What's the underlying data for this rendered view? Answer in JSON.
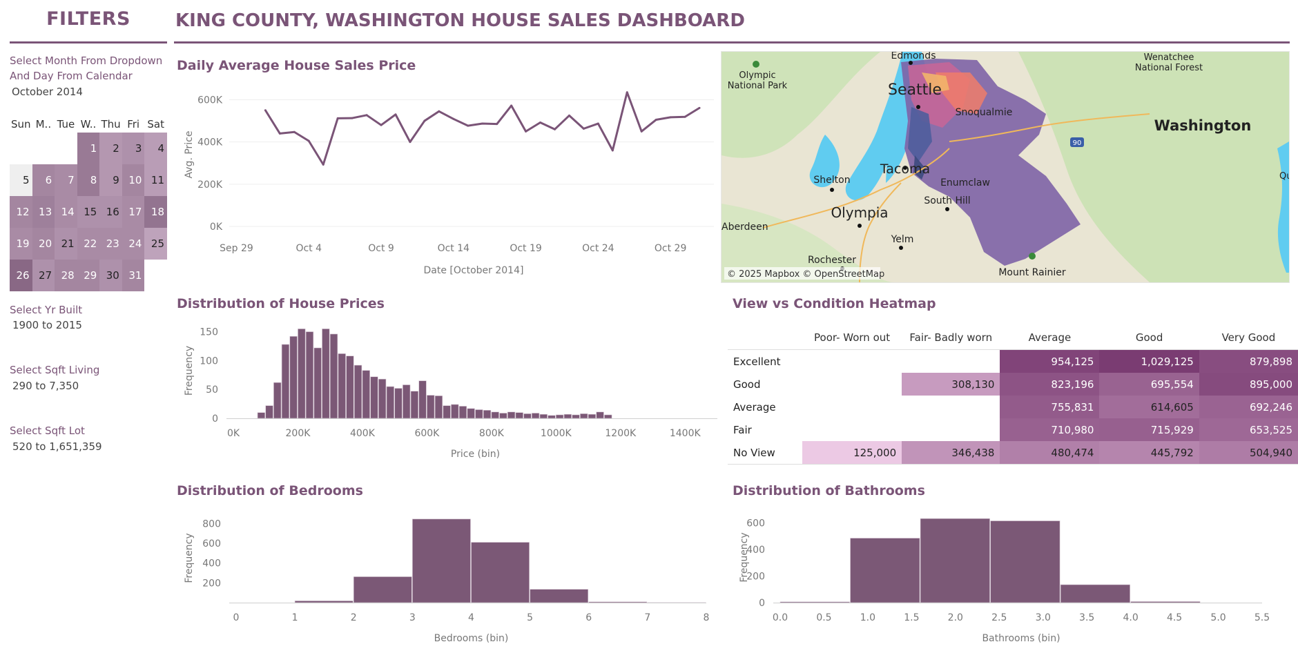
{
  "title": "KING COUNTY, WASHINGTON HOUSE SALES DASHBOARD",
  "filters": {
    "heading": "FILTERS",
    "month_label": "Select Month From Dropdown And Day From Calendar",
    "month_value": "October 2014",
    "calendar": {
      "weekdays": [
        "Sun",
        "M..",
        "Tue",
        "W..",
        "Thu",
        "Fri",
        "Sat"
      ],
      "leading_blanks": 3,
      "days": [
        "1",
        "2",
        "3",
        "4",
        "5",
        "6",
        "7",
        "8",
        "9",
        "10",
        "11",
        "12",
        "13",
        "14",
        "15",
        "16",
        "17",
        "18",
        "19",
        "20",
        "21",
        "22",
        "23",
        "24",
        "25",
        "26",
        "27",
        "28",
        "29",
        "30",
        "31"
      ],
      "shades": [
        0.6,
        0.35,
        0.4,
        0.3,
        0.0,
        0.5,
        0.45,
        0.6,
        0.35,
        0.5,
        0.3,
        0.5,
        0.55,
        0.45,
        0.4,
        0.4,
        0.45,
        0.65,
        0.45,
        0.5,
        0.4,
        0.45,
        0.45,
        0.45,
        0.25,
        0.75,
        0.4,
        0.5,
        0.5,
        0.4,
        0.5
      ]
    },
    "yr_built_label": "Select Yr Built",
    "yr_built_value": "1900 to 2015",
    "sqft_living_label": "Select Sqft Living",
    "sqft_living_value": "290 to 7,350",
    "sqft_lot_label": "Select Sqft Lot",
    "sqft_lot_value": "520 to 1,651,359"
  },
  "colors": {
    "accent": "#7a5477",
    "bar": "#7b5876",
    "heat_low": "#ecc9e4",
    "heat_high": "#7a3c72"
  },
  "chart_data": [
    {
      "id": "daily",
      "type": "line",
      "title": "Daily Average House Sales Price",
      "xlabel": "Date [October 2014]",
      "ylabel": "Avg. Price",
      "x": [
        1,
        2,
        3,
        4,
        5,
        6,
        7,
        8,
        9,
        10,
        11,
        12,
        13,
        14,
        15,
        16,
        17,
        18,
        19,
        20,
        21,
        22,
        23,
        24,
        25,
        26,
        27,
        28,
        29,
        30,
        31
      ],
      "values": [
        550000,
        440000,
        447000,
        405000,
        293000,
        512000,
        513000,
        527000,
        480000,
        530000,
        400000,
        500000,
        545000,
        509000,
        477000,
        487000,
        485000,
        572000,
        450000,
        492000,
        460000,
        525000,
        463000,
        487000,
        360000,
        635000,
        450000,
        505000,
        517000,
        519000,
        561000
      ],
      "ylim": [
        0,
        680000
      ],
      "yticks": [
        0,
        200000,
        400000,
        600000
      ],
      "ytick_labels": [
        "0K",
        "200K",
        "400K",
        "600K"
      ],
      "xtick_days": [
        -1,
        4,
        9,
        14,
        19,
        24,
        29
      ],
      "xtick_labels": [
        "Sep 29",
        "Oct 4",
        "Oct 9",
        "Oct 14",
        "Oct 19",
        "Oct 24",
        "Oct 29"
      ],
      "grid": true
    },
    {
      "id": "price_hist",
      "type": "bar",
      "title": "Distribution of House Prices",
      "xlabel": "Price (bin)",
      "ylabel": "Frequency",
      "bin_start": 75000,
      "bin_width": 25000,
      "values": [
        10,
        22,
        62,
        128,
        142,
        155,
        150,
        122,
        155,
        146,
        112,
        108,
        92,
        83,
        72,
        68,
        55,
        52,
        58,
        47,
        65,
        40,
        39,
        22,
        24,
        21,
        17,
        15,
        14,
        11,
        9,
        11,
        10,
        8,
        9,
        7,
        5,
        6,
        7,
        6,
        8,
        7,
        11,
        6
      ],
      "xlim": [
        0,
        1500000
      ],
      "xticks": [
        0,
        200000,
        400000,
        600000,
        800000,
        1000000,
        1200000,
        1400000
      ],
      "xtick_labels": [
        "0K",
        "200K",
        "400K",
        "600K",
        "800K",
        "1000K",
        "1200K",
        "1400K"
      ],
      "ylim": [
        0,
        165
      ],
      "yticks": [
        0,
        50,
        100,
        150
      ],
      "ytick_labels": [
        "0",
        "50",
        "100",
        "150"
      ]
    },
    {
      "id": "heatmap",
      "type": "heatmap",
      "title": "View vs Condition Heatmap",
      "columns": [
        "Poor- Worn out",
        "Fair- Badly worn",
        "Average",
        "Good",
        "Very Good"
      ],
      "rows": [
        {
          "label": "Excellent",
          "cells": [
            "",
            "",
            "954,125",
            "1,029,125",
            "879,898"
          ],
          "values": [
            null,
            null,
            954125,
            1029125,
            879898
          ]
        },
        {
          "label": "Good",
          "cells": [
            "",
            "308,130",
            "823,196",
            "695,554",
            "895,000"
          ],
          "values": [
            null,
            308130,
            823196,
            695554,
            895000
          ]
        },
        {
          "label": "Average",
          "cells": [
            "",
            "",
            "755,831",
            "614,605",
            "692,246"
          ],
          "values": [
            null,
            null,
            755831,
            614605,
            692246
          ]
        },
        {
          "label": "Fair",
          "cells": [
            "",
            "",
            "710,980",
            "715,929",
            "653,525"
          ],
          "values": [
            null,
            null,
            710980,
            715929,
            653525
          ]
        },
        {
          "label": "No View",
          "cells": [
            "125,000",
            "346,438",
            "480,474",
            "445,792",
            "504,940"
          ],
          "values": [
            125000,
            346438,
            480474,
            445792,
            504940
          ]
        }
      ]
    },
    {
      "id": "bedrooms",
      "type": "bar",
      "title": "Distribution of Bedrooms",
      "xlabel": "Bedrooms (bin)",
      "ylabel": "Frequency",
      "bin_start": 0,
      "bin_width": 1,
      "values": [
        0,
        18,
        262,
        845,
        610,
        135,
        8,
        1
      ],
      "xlim": [
        0,
        8
      ],
      "xticks": [
        0,
        1,
        2,
        3,
        4,
        5,
        6,
        7,
        8
      ],
      "xtick_labels": [
        "0",
        "1",
        "2",
        "3",
        "4",
        "5",
        "6",
        "7",
        "8"
      ],
      "ylim": [
        0,
        900
      ],
      "yticks": [
        200,
        400,
        600,
        800
      ],
      "ytick_labels": [
        "200",
        "400",
        "600",
        "800"
      ]
    },
    {
      "id": "bathrooms",
      "type": "bar",
      "title": "Distribution of Bathrooms",
      "xlabel": "Bathrooms (bin)",
      "ylabel": "Frequency",
      "bin_start": 0,
      "bin_width": 0.8,
      "values": [
        6,
        485,
        632,
        615,
        135,
        8,
        0
      ],
      "xlim": [
        0,
        5.5
      ],
      "xticks": [
        0,
        0.5,
        1,
        1.5,
        2,
        2.5,
        3,
        3.5,
        4,
        4.5,
        5,
        5.5
      ],
      "xtick_labels": [
        "0.0",
        "0.5",
        "1.0",
        "1.5",
        "2.0",
        "2.5",
        "3.0",
        "3.5",
        "4.0",
        "4.5",
        "5.0",
        "5.5"
      ],
      "ylim": [
        0,
        680
      ],
      "yticks": [
        0,
        200,
        400,
        600
      ],
      "ytick_labels": [
        "0",
        "200",
        "400",
        "600"
      ]
    }
  ],
  "map": {
    "labels": [
      "Edmonds",
      "Olympic National Park",
      "Seattle",
      "Snoqualmie",
      "Wenatchee National Forest",
      "Washington",
      "Shelton",
      "Tacoma",
      "Enumclaw",
      "South Hill",
      "Olympia",
      "Aberdeen",
      "Yelm",
      "Rochester",
      "Mount Rainier",
      "Qu"
    ],
    "attribution": "© 2025 Mapbox © OpenStreetMap",
    "interstate": "90"
  }
}
